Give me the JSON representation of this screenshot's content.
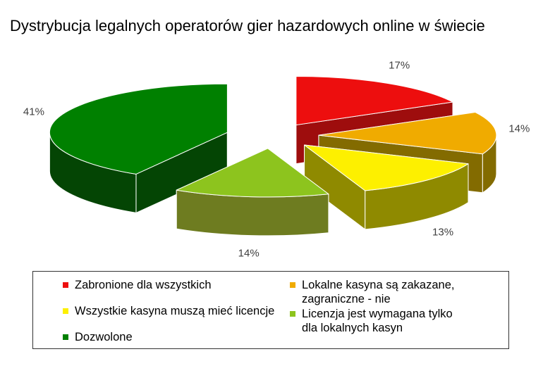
{
  "title": "Dystrybucja legalnych operatorów gier hazardowych online w świecie",
  "chart_data": {
    "type": "pie",
    "style": "3d-exploded",
    "title": "Dystrybucja legalnych operatorów gier hazardowych online w świecie",
    "legend_position": "bottom",
    "label_color": "#404040",
    "background": "#ffffff",
    "slices": [
      {
        "name": "zabronione-dla-wszystkich",
        "label": "Zabronione dla wszystkich",
        "value": 17,
        "pct_label": "17%",
        "color": "#ed0e0e",
        "side_color": "#9e0d0d"
      },
      {
        "name": "lokalne-kasyna-zakazane",
        "label": "Lokalne kasyna są zakazane, zagraniczne - nie",
        "value": 14,
        "pct_label": "14%",
        "color": "#f0ab00",
        "side_color": "#836b00"
      },
      {
        "name": "wszystkie-kasyna-licencje",
        "label": "Wszystkie kasyna muszą mieć licencje",
        "value": 13,
        "pct_label": "13%",
        "color": "#fdf000",
        "side_color": "#8f8a00"
      },
      {
        "name": "licenzja-tylko-lokalne",
        "label": "Licenzja jest wymagana tylko dla lokalnych kasyn",
        "value": 14,
        "pct_label": "14%",
        "color": "#8dc41e",
        "side_color": "#6e7c20"
      },
      {
        "name": "dozwolone",
        "label": "Dozwolone",
        "value": 41,
        "pct_label": "41%",
        "color": "#008000",
        "side_color": "#044504"
      }
    ]
  },
  "legend": {
    "columns": [
      {
        "items": [
          {
            "text": "Zabronione dla wszystkich",
            "color": "#ed0e0e"
          },
          {
            "text": "Wszystkie kasyna muszą mieć licencje",
            "color": "#fdf000"
          },
          {
            "text": "Dozwolone",
            "color": "#008000"
          }
        ]
      },
      {
        "items": [
          {
            "text": "Lokalne kasyna są zakazane,\nzagraniczne - nie",
            "color": "#f0ab00"
          },
          {
            "text": "Licenzja jest wymagana tylko\ndla lokalnych kasyn",
            "color": "#8dc41e"
          }
        ]
      }
    ]
  }
}
